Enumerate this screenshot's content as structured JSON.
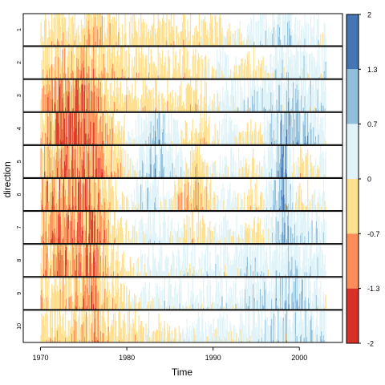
{
  "chart_data": {
    "type": "area",
    "subtype": "horizon-plot",
    "xlabel": "Time",
    "ylabel": "direction",
    "xlim": [
      1968,
      2005
    ],
    "x_ticks": [
      1970,
      1980,
      1990,
      2000
    ],
    "x_tick_labels": [
      "1970",
      "1980",
      "1990",
      "2000"
    ],
    "panels": [
      "1",
      "2",
      "3",
      "4",
      "5",
      "6",
      "7",
      "8",
      "9",
      "10"
    ],
    "series_time_range": [
      1970,
      2003
    ],
    "color_scale": {
      "breaks": [
        -2,
        -1.3,
        -0.7,
        0,
        0.7,
        1.3,
        2
      ],
      "labels": [
        "2",
        "1.3",
        "0.7",
        "0",
        "-0.7",
        "-1.3",
        "-2"
      ],
      "colors": [
        "#d73027",
        "#fc8d59",
        "#fee090",
        "#e0f3f8",
        "#91bfdb",
        "#4575b4"
      ]
    },
    "anomaly_profiles": [
      {
        "panel": "1",
        "knots": [
          [
            1970,
            -0.35
          ],
          [
            1974,
            -0.6
          ],
          [
            1976.5,
            -1.0
          ],
          [
            1979,
            -0.4
          ],
          [
            1983,
            -0.4
          ],
          [
            1990,
            -0.3
          ],
          [
            1995,
            0.3
          ],
          [
            1998,
            0.8
          ],
          [
            2000,
            0.5
          ],
          [
            2003,
            0.4
          ]
        ]
      },
      {
        "panel": "2",
        "knots": [
          [
            1970,
            -0.5
          ],
          [
            1974,
            -1.0
          ],
          [
            1976,
            -0.9
          ],
          [
            1979,
            -0.6
          ],
          [
            1983,
            -0.3
          ],
          [
            1988,
            -0.3
          ],
          [
            1991,
            0.3
          ],
          [
            1995,
            -0.3
          ],
          [
            1998,
            0.7
          ],
          [
            2003,
            0.5
          ]
        ]
      },
      {
        "panel": "3",
        "knots": [
          [
            1970,
            -0.7
          ],
          [
            1971,
            -1.4
          ],
          [
            1974,
            -1.6
          ],
          [
            1976,
            -1.4
          ],
          [
            1978,
            -0.6
          ],
          [
            1983,
            -0.4
          ],
          [
            1988,
            -0.4
          ],
          [
            1992,
            0.3
          ],
          [
            1998,
            0.9
          ],
          [
            2003,
            0.5
          ]
        ]
      },
      {
        "panel": "4",
        "knots": [
          [
            1970,
            -1.0
          ],
          [
            1971,
            -1.3
          ],
          [
            1974,
            -1.7
          ],
          [
            1976,
            -1.5
          ],
          [
            1979,
            -0.5
          ],
          [
            1983,
            1.1
          ],
          [
            1985,
            0.4
          ],
          [
            1988,
            -0.5
          ],
          [
            1992,
            0.4
          ],
          [
            1995,
            -0.3
          ],
          [
            1998,
            1.6
          ],
          [
            2003,
            0.5
          ]
        ]
      },
      {
        "panel": "5",
        "knots": [
          [
            1970,
            -1.0
          ],
          [
            1974,
            -1.7
          ],
          [
            1976,
            -1.6
          ],
          [
            1979,
            -0.6
          ],
          [
            1983,
            1.1
          ],
          [
            1986,
            0.5
          ],
          [
            1988,
            -0.6
          ],
          [
            1992,
            0.4
          ],
          [
            1995,
            -0.3
          ],
          [
            1998,
            1.9
          ],
          [
            2000,
            -0.4
          ],
          [
            2003,
            0.4
          ]
        ]
      },
      {
        "panel": "6",
        "knots": [
          [
            1970,
            -1.1
          ],
          [
            1972,
            -1.4
          ],
          [
            1975.5,
            -1.5
          ],
          [
            1978,
            -0.5
          ],
          [
            1983,
            1.0
          ],
          [
            1986,
            -0.6
          ],
          [
            1988,
            -1.3
          ],
          [
            1991,
            0.4
          ],
          [
            1995,
            -0.4
          ],
          [
            1998,
            1.6
          ],
          [
            2000,
            -0.5
          ],
          [
            2003,
            0.4
          ]
        ]
      },
      {
        "panel": "7",
        "knots": [
          [
            1970,
            -0.8
          ],
          [
            1971.5,
            -1.5
          ],
          [
            1974,
            -1.3
          ],
          [
            1976,
            -1.9
          ],
          [
            1978,
            -0.6
          ],
          [
            1983,
            0.6
          ],
          [
            1988,
            -0.4
          ],
          [
            1992,
            0.4
          ],
          [
            1995,
            -0.3
          ],
          [
            1998,
            1.2
          ],
          [
            2003,
            0.5
          ]
        ]
      },
      {
        "panel": "8",
        "knots": [
          [
            1970,
            -0.9
          ],
          [
            1972,
            -1.4
          ],
          [
            1974,
            -1.3
          ],
          [
            1976,
            -1.7
          ],
          [
            1978,
            -0.6
          ],
          [
            1983,
            0.4
          ],
          [
            1988,
            0.3
          ],
          [
            1993,
            0.6
          ],
          [
            1997,
            0.4
          ],
          [
            1999,
            1.0
          ],
          [
            2003,
            0.4
          ]
        ]
      },
      {
        "panel": "9",
        "knots": [
          [
            1970,
            -0.5
          ],
          [
            1972,
            -0.8
          ],
          [
            1974,
            -0.9
          ],
          [
            1976,
            -1.4
          ],
          [
            1978,
            -0.6
          ],
          [
            1982,
            0.3
          ],
          [
            1988,
            0.4
          ],
          [
            1993,
            0.5
          ],
          [
            1996,
            0.8
          ],
          [
            1999,
            1.0
          ],
          [
            2003,
            0.4
          ]
        ]
      },
      {
        "panel": "10",
        "knots": [
          [
            1970,
            -0.4
          ],
          [
            1975,
            -0.7
          ],
          [
            1976,
            -1.0
          ],
          [
            1978,
            -0.5
          ],
          [
            1983,
            -0.3
          ],
          [
            1988,
            0.2
          ],
          [
            1993,
            0.2
          ],
          [
            1998,
            0.9
          ],
          [
            2003,
            0.5
          ]
        ]
      }
    ]
  }
}
